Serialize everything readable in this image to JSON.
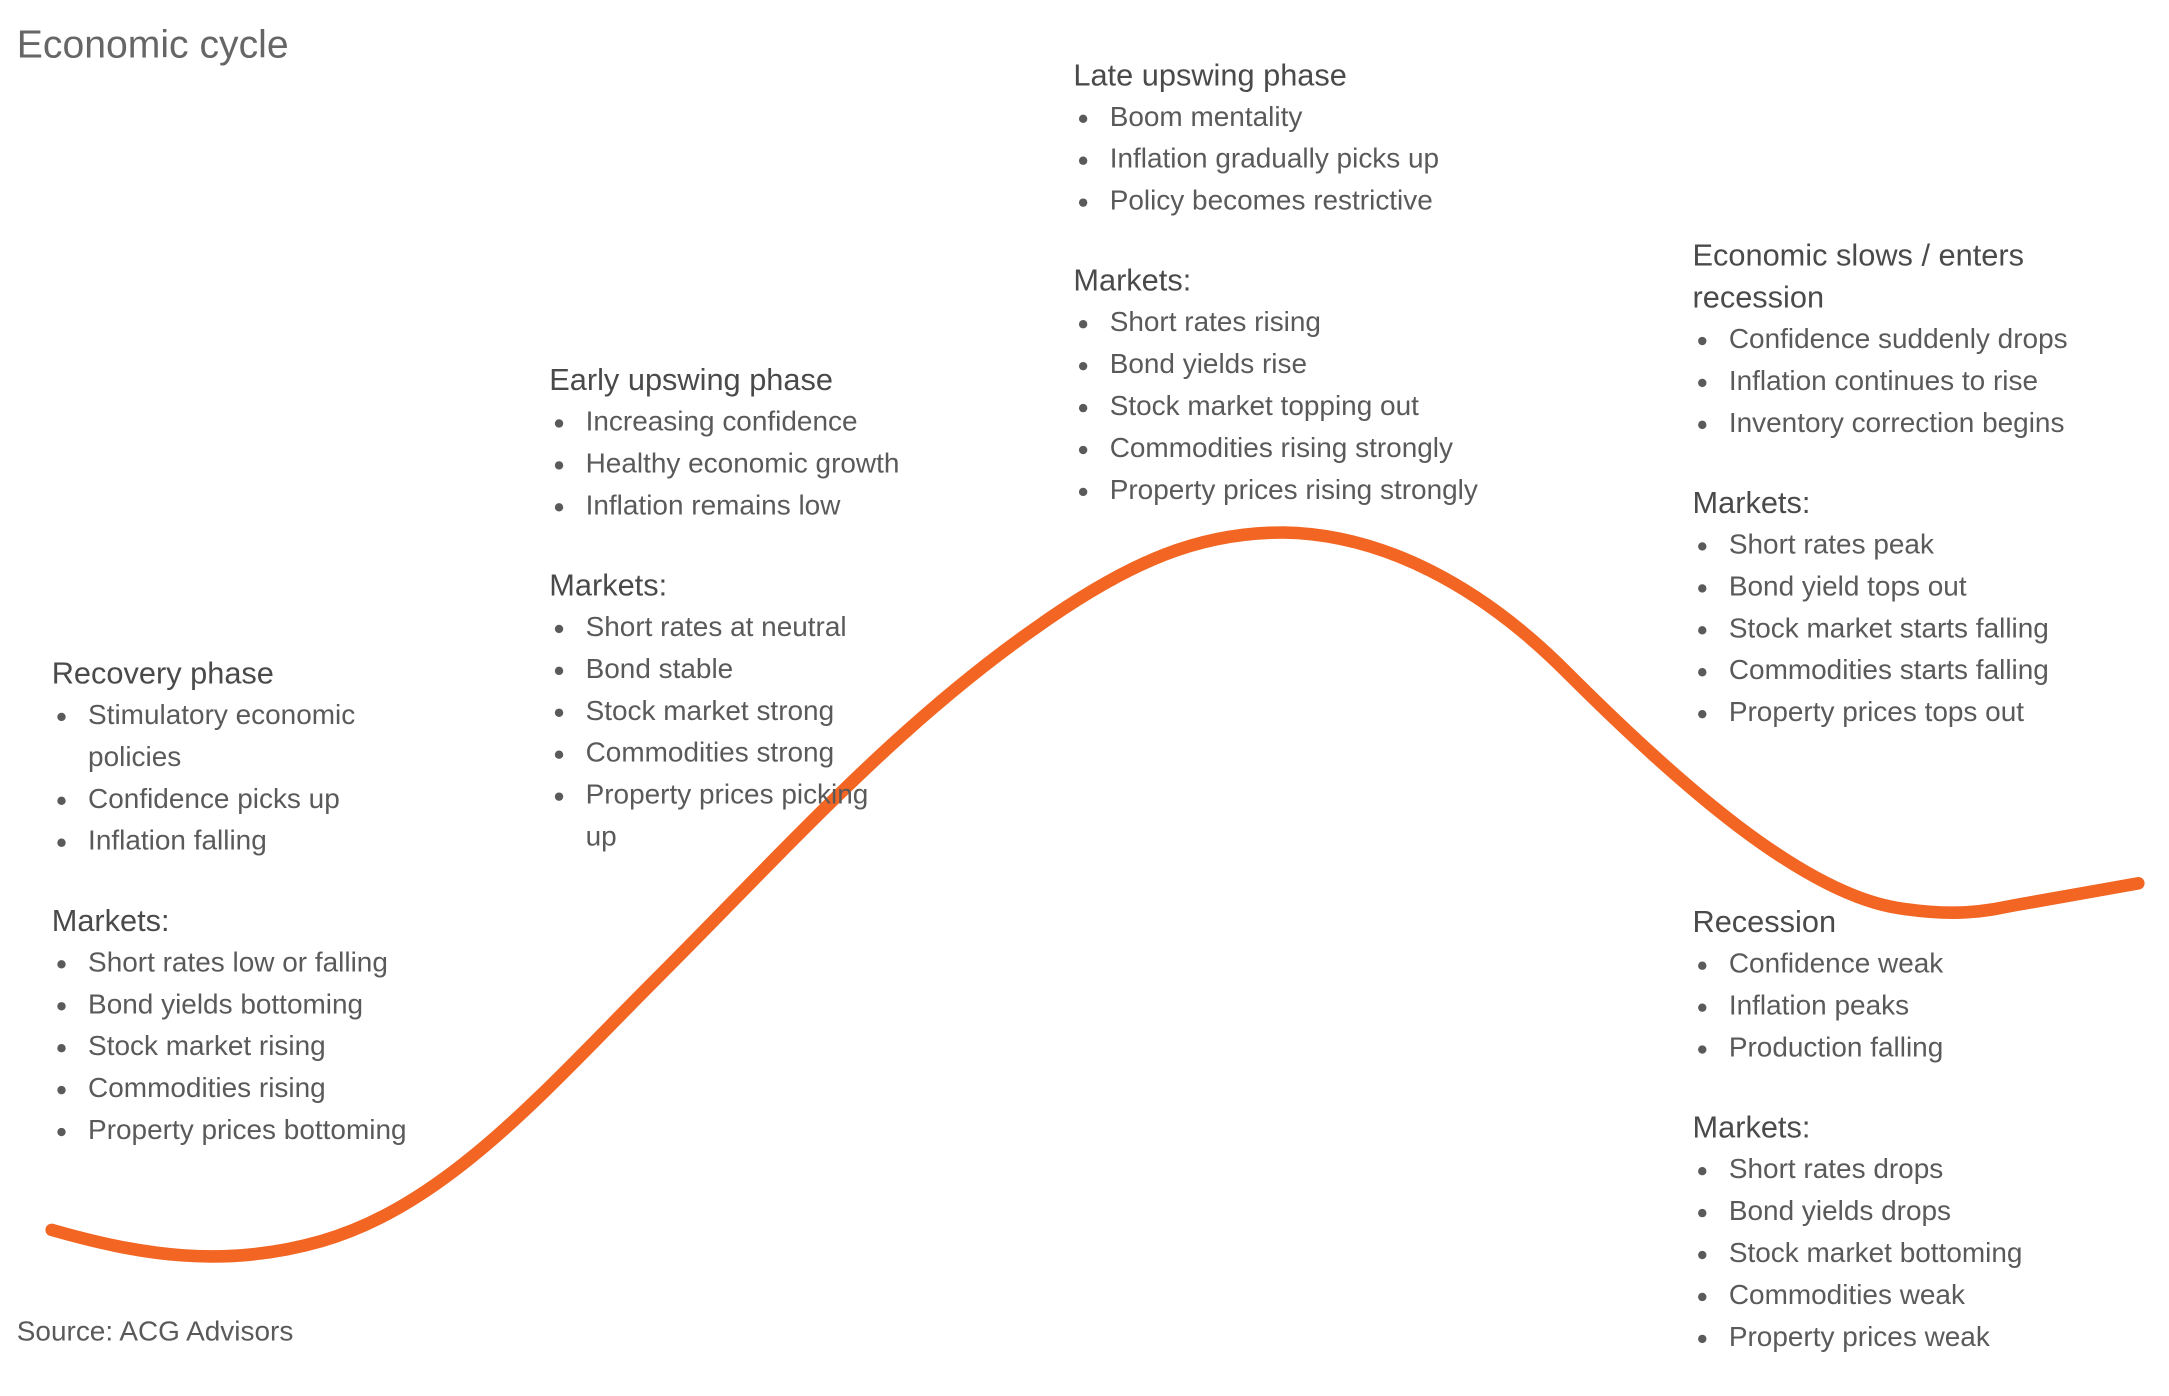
{
  "title": "Economic cycle",
  "phases": [
    {
      "title": "Recovery phase",
      "points": [
        "Stimulatory economic policies",
        "Confidence picks up",
        "Inflation falling"
      ],
      "markets_label": "Markets:",
      "markets": [
        "Short rates low or falling",
        "Bond yields bottoming",
        "Stock market rising",
        "Commodities rising",
        "Property prices bottoming"
      ]
    },
    {
      "title": "Early upswing phase",
      "points": [
        "Increasing confidence",
        "Healthy economic growth",
        "Inflation remains low"
      ],
      "markets_label": "Markets:",
      "markets": [
        "Short rates at neutral",
        "Bond stable",
        "Stock market strong",
        "Commodities strong",
        "Property prices picking up"
      ]
    },
    {
      "title": "Late upswing phase",
      "points": [
        "Boom mentality",
        "Inflation gradually picks up",
        "Policy becomes restrictive"
      ],
      "markets_label": "Markets:",
      "markets": [
        "Short rates rising",
        "Bond yields rise",
        "Stock market topping out",
        "Commodities rising strongly",
        "Property prices rising strongly"
      ]
    },
    {
      "title": "Economic slows / enters recession",
      "points": [
        "Confidence suddenly drops",
        "Inflation continues to rise",
        "Inventory correction begins"
      ],
      "markets_label": "Markets:",
      "markets": [
        "Short rates peak",
        "Bond yield tops out",
        "Stock market starts falling",
        "Commodities starts falling",
        "Property prices tops out"
      ]
    },
    {
      "title": "Recession",
      "points": [
        "Confidence weak",
        "Inflation peaks",
        "Production falling"
      ],
      "markets_label": "Markets:",
      "markets": [
        "Short rates drops",
        "Bond yields drops",
        "Stock market bottoming",
        "Commodities weak",
        "Property prices weak"
      ]
    }
  ],
  "source": "Source: ACG Advisors"
}
